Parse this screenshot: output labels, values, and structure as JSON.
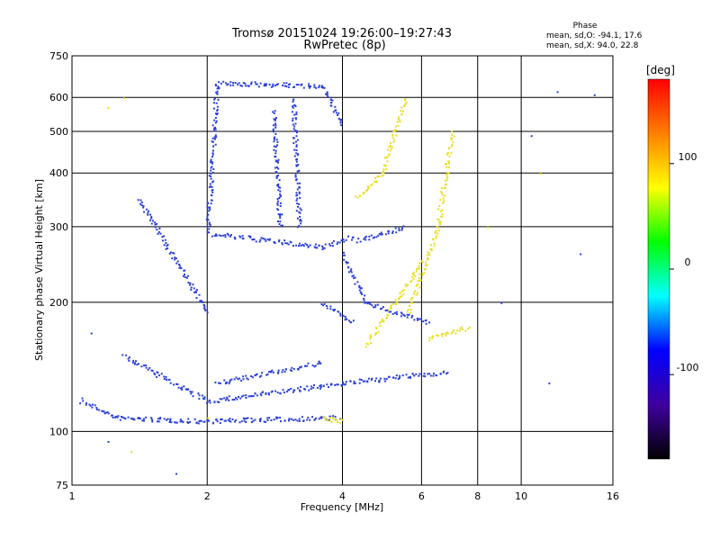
{
  "chart_data": {
    "type": "scatter",
    "title": "Tromsø 20151024 19:26:00–19:27:43",
    "subtitle": "RwPretec (8p)",
    "xlabel": "Frequency [MHz]",
    "ylabel": "Stationary phase Virtual Height [km]",
    "x_scale": "log",
    "y_scale": "log",
    "xlim": [
      1,
      16
    ],
    "ylim": [
      75,
      750
    ],
    "x_ticks": [
      "1",
      "2",
      "4",
      "6",
      "8",
      "10",
      "16"
    ],
    "y_ticks": [
      "75",
      "100",
      "200",
      "300",
      "400",
      "500",
      "600",
      "750"
    ],
    "grid": true,
    "phase_info": {
      "title": "Phase",
      "line_o": "mean, sd,O:  -94.1, 17.6",
      "line_x": "mean, sd,X:  94.0, 22.8"
    },
    "colorbar": {
      "label": "[deg]",
      "ticks": [
        "100",
        "0",
        "-100"
      ],
      "range": [
        -180,
        180
      ],
      "colors": [
        "#ff0000",
        "#ff8000",
        "#ffff00",
        "#00ff00",
        "#00ffff",
        "#0000ff",
        "#4000a0",
        "#000000"
      ]
    },
    "series": [
      {
        "role": "O-mode traces",
        "phase_deg": -94,
        "color": "#2a3fd9",
        "segments": [
          {
            "from": [
              1.05,
              118
            ],
            "to": [
              1.25,
              108
            ]
          },
          {
            "from": [
              1.25,
              108
            ],
            "to": [
              1.9,
              106
            ]
          },
          {
            "from": [
              1.9,
              106
            ],
            "to": [
              3.9,
              108
            ]
          },
          {
            "from": [
              1.3,
              150
            ],
            "to": [
              2.0,
              118
            ]
          },
          {
            "from": [
              2.0,
              118
            ],
            "to": [
              4.0,
              130
            ]
          },
          {
            "from": [
              4.0,
              130
            ],
            "to": [
              6.8,
              138
            ]
          },
          {
            "from": [
              2.1,
              130
            ],
            "to": [
              3.6,
              145
            ]
          },
          {
            "from": [
              2.0,
              290
            ],
            "to": [
              3.6,
              270
            ]
          },
          {
            "from": [
              3.6,
              270
            ],
            "to": [
              4.2,
              285
            ]
          },
          {
            "from": [
              2.0,
              300
            ],
            "to": [
              2.1,
              650
            ]
          },
          {
            "from": [
              2.1,
              650
            ],
            "to": [
              3.6,
              640
            ]
          },
          {
            "from": [
              3.6,
              640
            ],
            "to": [
              4.0,
              520
            ]
          },
          {
            "from": [
              4.0,
              260
            ],
            "to": [
              4.5,
              200
            ]
          },
          {
            "from": [
              4.5,
              200
            ],
            "to": [
              6.2,
              180
            ]
          },
          {
            "from": [
              4.3,
              280
            ],
            "to": [
              5.5,
              300
            ]
          },
          {
            "from": [
              1.4,
              350
            ],
            "to": [
              2.0,
              190
            ]
          },
          {
            "from": [
              3.6,
              200
            ],
            "to": [
              4.2,
              180
            ]
          },
          {
            "from": [
              2.8,
              560
            ],
            "to": [
              2.9,
              300
            ]
          },
          {
            "from": [
              3.1,
              600
            ],
            "to": [
              3.2,
              300
            ]
          }
        ]
      },
      {
        "role": "X-mode traces",
        "phase_deg": 94,
        "color": "#e8e020",
        "segments": [
          {
            "from": [
              4.3,
              350
            ],
            "to": [
              4.9,
              400
            ]
          },
          {
            "from": [
              4.9,
              400
            ],
            "to": [
              5.5,
              600
            ]
          },
          {
            "from": [
              4.5,
              160
            ],
            "to": [
              5.2,
              200
            ]
          },
          {
            "from": [
              5.2,
              200
            ],
            "to": [
              6.0,
              250
            ]
          },
          {
            "from": [
              6.2,
              165
            ],
            "to": [
              7.6,
              175
            ]
          },
          {
            "from": [
              3.6,
              108
            ],
            "to": [
              4.0,
              106
            ]
          },
          {
            "from": [
              5.6,
              190
            ],
            "to": [
              6.5,
              300
            ]
          },
          {
            "from": [
              6.5,
              300
            ],
            "to": [
              7.0,
              500
            ]
          }
        ]
      }
    ],
    "scattered_points": [
      {
        "x": 1.2,
        "y": 570,
        "color": "#e8e020"
      },
      {
        "x": 1.3,
        "y": 600,
        "color": "#e8e020"
      },
      {
        "x": 1.05,
        "y": 120,
        "color": "#2a3fd9"
      },
      {
        "x": 1.2,
        "y": 95,
        "color": "#2a3fd9"
      },
      {
        "x": 1.35,
        "y": 90,
        "color": "#e8e020"
      },
      {
        "x": 1.7,
        "y": 80,
        "color": "#2a3fd9"
      },
      {
        "x": 10.5,
        "y": 490,
        "color": "#2a3fd9"
      },
      {
        "x": 11.0,
        "y": 400,
        "color": "#e8e020"
      },
      {
        "x": 12.0,
        "y": 620,
        "color": "#2a3fd9"
      },
      {
        "x": 13.5,
        "y": 260,
        "color": "#2a3fd9"
      },
      {
        "x": 14.5,
        "y": 610,
        "color": "#2a3fd9"
      },
      {
        "x": 11.5,
        "y": 130,
        "color": "#2a3fd9"
      },
      {
        "x": 8.4,
        "y": 300,
        "color": "#e8e020"
      },
      {
        "x": 9.0,
        "y": 200,
        "color": "#2a3fd9"
      },
      {
        "x": 2.0,
        "y": 108,
        "color": "#e8e020"
      },
      {
        "x": 1.1,
        "y": 170,
        "color": "#2a3fd9"
      }
    ]
  }
}
